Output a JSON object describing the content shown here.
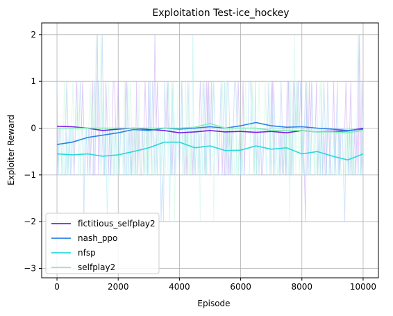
{
  "chart_data": {
    "type": "line",
    "title": "Exploitation Test-ice_hockey",
    "xlabel": "Episode",
    "ylabel": "Exploiter Reward",
    "xlim": [
      -500,
      10500
    ],
    "ylim": [
      -3.2,
      2.25
    ],
    "xticks": [
      0,
      2000,
      4000,
      6000,
      8000,
      10000
    ],
    "xtick_labels": [
      "0",
      "2000",
      "4000",
      "6000",
      "8000",
      "10000"
    ],
    "yticks": [
      -3,
      -2,
      -1,
      0,
      1,
      2
    ],
    "ytick_labels": [
      "−3",
      "−2",
      "−1",
      "0",
      "1",
      "2"
    ],
    "grid": true,
    "legend_position": "lower-left",
    "series": [
      {
        "name": "fictitious_selfplay2",
        "color": "#7a1fe6",
        "raw_color": "#c7a2f2",
        "x": [
          0,
          500,
          1000,
          1500,
          2000,
          2500,
          3000,
          3500,
          4000,
          4500,
          5000,
          5500,
          6000,
          6500,
          7000,
          7500,
          8000,
          8500,
          9000,
          9500,
          10000
        ],
        "values": [
          0.04,
          0.03,
          0.0,
          -0.05,
          -0.02,
          0.0,
          -0.03,
          -0.05,
          -0.1,
          -0.08,
          -0.05,
          -0.08,
          -0.07,
          -0.09,
          -0.07,
          -0.1,
          -0.05,
          -0.08,
          -0.07,
          -0.06,
          0.0
        ]
      },
      {
        "name": "nash_ppo",
        "color": "#2a82ea",
        "raw_color": "#a9cdf6",
        "x": [
          0,
          500,
          1000,
          1500,
          2000,
          2500,
          3000,
          3500,
          4000,
          4500,
          5000,
          5500,
          6000,
          6500,
          7000,
          7500,
          8000,
          8500,
          9000,
          9500,
          10000
        ],
        "values": [
          -0.35,
          -0.3,
          -0.2,
          -0.15,
          -0.1,
          -0.03,
          -0.05,
          0.0,
          -0.02,
          0.0,
          0.03,
          0.0,
          0.05,
          0.12,
          0.05,
          0.02,
          0.03,
          0.0,
          -0.02,
          -0.05,
          -0.02
        ]
      },
      {
        "name": "nfsp",
        "color": "#29d9dc",
        "raw_color": "#a9eef0",
        "x": [
          0,
          500,
          1000,
          1500,
          2000,
          2500,
          3000,
          3500,
          4000,
          4500,
          5000,
          5500,
          6000,
          6500,
          7000,
          7500,
          8000,
          8500,
          9000,
          9500,
          10000
        ],
        "values": [
          -0.55,
          -0.57,
          -0.55,
          -0.6,
          -0.57,
          -0.5,
          -0.42,
          -0.3,
          -0.3,
          -0.42,
          -0.38,
          -0.48,
          -0.47,
          -0.38,
          -0.45,
          -0.42,
          -0.55,
          -0.5,
          -0.6,
          -0.68,
          -0.55
        ]
      },
      {
        "name": "selfplay2",
        "color": "#7ff0b2",
        "raw_color": "#c8f8de",
        "x": [
          0,
          500,
          1000,
          1500,
          2000,
          2500,
          3000,
          3500,
          4000,
          4500,
          5000,
          5500,
          6000,
          6500,
          7000,
          7500,
          8000,
          8500,
          9000,
          9500,
          10000
        ],
        "values": [
          0.0,
          0.0,
          0.0,
          0.0,
          0.0,
          0.0,
          0.0,
          0.0,
          0.0,
          0.02,
          0.1,
          0.0,
          0.0,
          0.0,
          -0.05,
          -0.05,
          -0.05,
          -0.08,
          -0.08,
          -0.1,
          -0.05
        ]
      }
    ]
  }
}
